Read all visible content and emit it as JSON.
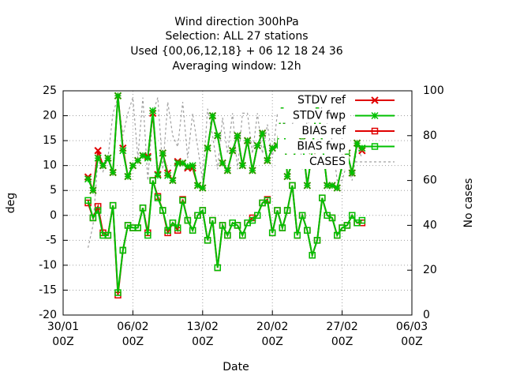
{
  "chart_data": {
    "type": "line",
    "title": [
      "Wind direction 300hPa",
      "Selection: ALL      27 stations",
      "Used {00,06,12,18} + 06 12 18 24 36",
      "Averaging window: 12h"
    ],
    "xlabel": "Date",
    "ylabel": "deg",
    "y2label": "No cases",
    "xlim": [
      0,
      35
    ],
    "xticks": [
      {
        "value": 0,
        "label": "30/01\n00Z"
      },
      {
        "value": 7,
        "label": "06/02\n00Z"
      },
      {
        "value": 14,
        "label": "13/02\n00Z"
      },
      {
        "value": 21,
        "label": "20/02\n00Z"
      },
      {
        "value": 28,
        "label": "27/02\n00Z"
      },
      {
        "value": 35,
        "label": "06/03\n00Z"
      }
    ],
    "ylim": [
      -20,
      25
    ],
    "yticks": [
      -20,
      -15,
      -10,
      -5,
      0,
      5,
      10,
      15,
      20,
      25
    ],
    "y2lim": [
      0,
      100
    ],
    "y2ticks": [
      0,
      20,
      40,
      60,
      80,
      100
    ],
    "grid": true,
    "x": [
      2.5,
      3,
      3.5,
      4,
      4.5,
      5,
      5.5,
      6,
      6.5,
      7,
      7.5,
      8,
      8.5,
      9,
      9.5,
      10,
      10.5,
      11,
      11.5,
      12,
      12.5,
      13,
      13.5,
      14,
      14.5,
      15,
      15.5,
      16,
      16.5,
      17,
      17.5,
      18,
      18.5,
      19,
      19.5,
      20,
      20.5,
      21,
      21.5,
      22,
      22.5,
      23,
      23.5,
      24,
      24.5,
      25,
      25.5,
      26,
      26.5,
      27,
      27.5,
      28,
      28.5,
      29,
      29.5,
      30
    ],
    "series": [
      {
        "name": "CASES",
        "color": "#a0a0a0",
        "marker": "none",
        "dash": true,
        "axis": "y2",
        "values": [
          30,
          40,
          70,
          64,
          70,
          90,
          97,
          80,
          90,
          97,
          70,
          97,
          60,
          90,
          97,
          65,
          95,
          80,
          75,
          95,
          70,
          90,
          75,
          60,
          92,
          80,
          65,
          88,
          72,
          90,
          65,
          90,
          90,
          72,
          90,
          72,
          85,
          70,
          90,
          80,
          90,
          85,
          92,
          65,
          88,
          80,
          75,
          95,
          85,
          78,
          60,
          60,
          68,
          60,
          75,
          70
        ]
      },
      {
        "name": "STDV ref",
        "color": "#e00000",
        "marker": "x",
        "values": [
          7.7,
          5,
          13,
          10,
          11.5,
          8.6,
          24,
          13.5,
          7.8,
          10,
          11,
          12,
          11.8,
          20.5,
          8.2,
          12.5,
          8.5,
          7,
          10.8,
          10.5,
          9.5,
          9.5,
          6,
          5.5,
          13.5,
          20,
          16,
          10.5,
          9,
          13,
          16,
          10,
          15,
          9,
          14,
          16.5,
          11,
          13.5,
          14,
          23,
          7.8,
          10.5,
          14.5,
          15,
          6,
          13,
          23.5,
          14.5,
          6,
          6,
          5.5,
          10,
          12.5,
          8.5,
          14.5,
          13
        ]
      },
      {
        "name": "STDV fwp",
        "color": "#00c000",
        "marker": "star",
        "values": [
          7.3,
          5,
          11.5,
          10,
          11.5,
          8.6,
          24,
          13,
          7.8,
          10,
          11,
          12,
          11.5,
          21,
          8,
          12.5,
          8,
          7,
          10.5,
          10.5,
          9.8,
          10,
          6,
          5.5,
          13.5,
          20,
          16,
          10.5,
          9,
          13,
          16,
          10,
          15,
          9,
          14,
          16.5,
          11,
          13.5,
          14,
          23,
          7.8,
          10.5,
          14.5,
          15,
          6,
          13,
          23,
          14.5,
          6,
          6,
          5.5,
          10,
          12.5,
          8.5,
          14.5,
          13.5
        ]
      },
      {
        "name": "BIAS ref",
        "color": "#e00000",
        "marker": "square",
        "values": [
          2.5,
          -0.5,
          1.8,
          -3.5,
          -4,
          2,
          -16,
          -7,
          -2,
          -2.5,
          -2.5,
          1.5,
          -3.5,
          7,
          3.8,
          1,
          -3.5,
          -1.5,
          -3,
          3.2,
          -1,
          -3,
          0,
          1,
          -5,
          -1,
          -10.5,
          -2,
          -4,
          -1.5,
          -2,
          -4,
          -1.5,
          -0.5,
          0,
          2.5,
          3.2,
          -3.5,
          1,
          -2.5,
          1,
          6,
          -4,
          0,
          -3,
          -8,
          -5,
          3.5,
          0,
          -0.5,
          -4,
          -2.5,
          -2,
          0,
          -1.5,
          -1.5
        ]
      },
      {
        "name": "BIAS fwp",
        "color": "#00c000",
        "marker": "square",
        "values": [
          3,
          -0.5,
          1,
          -4,
          -4,
          2,
          -15.5,
          -7,
          -2,
          -2.5,
          -2.5,
          1.5,
          -4,
          7,
          3.5,
          1,
          -3,
          -1.5,
          -2.5,
          3,
          -1,
          -3,
          0,
          1,
          -5,
          -1,
          -10.5,
          -2,
          -4,
          -1.5,
          -2,
          -4,
          -1.5,
          -1,
          0,
          2.5,
          3,
          -3.5,
          1,
          -2.5,
          1,
          6,
          -4,
          0,
          -3,
          -8,
          -5,
          3.5,
          0,
          -0.5,
          -4,
          -2.5,
          -2,
          0,
          -1.5,
          -1
        ]
      }
    ]
  }
}
